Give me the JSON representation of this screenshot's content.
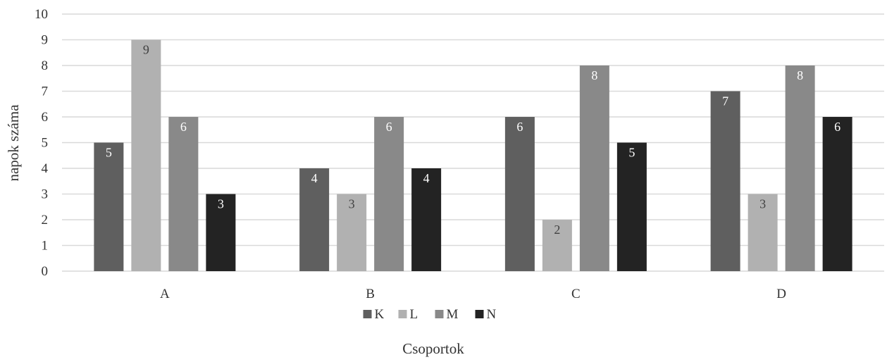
{
  "chart_data": {
    "type": "bar",
    "categories": [
      "A",
      "B",
      "C",
      "D"
    ],
    "series": [
      {
        "name": "K",
        "values": [
          5,
          4,
          6,
          7
        ],
        "color": "#5f5f5f",
        "label_color": "#ffffff"
      },
      {
        "name": "L",
        "values": [
          9,
          3,
          2,
          3
        ],
        "color": "#b1b1b1",
        "label_color": "#404040"
      },
      {
        "name": "M",
        "values": [
          6,
          6,
          8,
          8
        ],
        "color": "#898989",
        "label_color": "#ffffff"
      },
      {
        "name": "N",
        "values": [
          3,
          4,
          5,
          6
        ],
        "color": "#232323",
        "label_color": "#ffffff"
      }
    ],
    "title": "",
    "xlabel": "Csoportok",
    "ylabel": "napok száma",
    "ylim": [
      0,
      10
    ],
    "yticks": [
      0,
      1,
      2,
      3,
      4,
      5,
      6,
      7,
      8,
      9,
      10
    ],
    "grid": true,
    "legend_position": "bottom",
    "data_labels": true
  }
}
